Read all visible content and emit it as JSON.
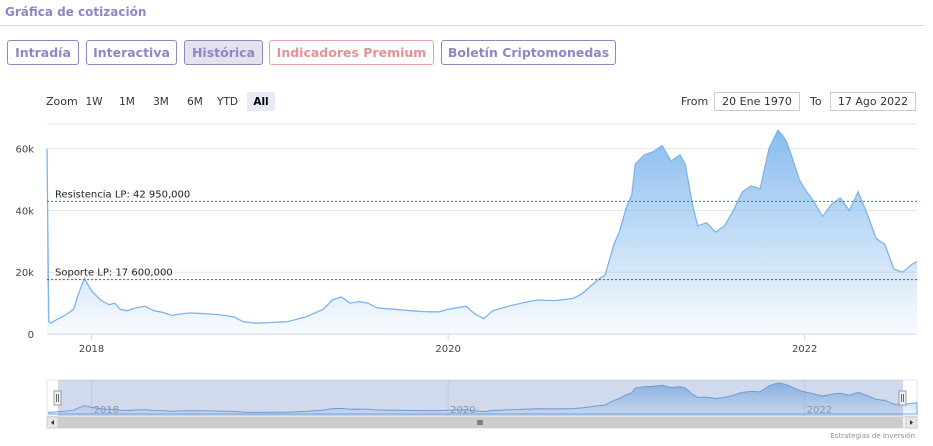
{
  "header": {
    "title": "Gráfica de cotización"
  },
  "tabs": [
    {
      "label": "Intradía",
      "active": false,
      "premium": false
    },
    {
      "label": "Interactiva",
      "active": false,
      "premium": false
    },
    {
      "label": "Histórica",
      "active": true,
      "premium": false
    },
    {
      "label": "Indicadores Premium",
      "active": false,
      "premium": true
    },
    {
      "label": "Boletín Criptomonedas",
      "active": false,
      "premium": false
    }
  ],
  "range_selector": {
    "zoom_label": "Zoom",
    "buttons": [
      "1W",
      "1M",
      "3M",
      "6M",
      "YTD",
      "All"
    ],
    "selected": "All",
    "from_label": "From",
    "from_value": "20 Ene 1970",
    "to_label": "To",
    "to_value": "17 Ago 2022"
  },
  "credits": "Estrategias de Inversión",
  "colors": {
    "series": "#7cb5ec",
    "resistance": "#2e9d2e",
    "support": "#c0392b",
    "navigator_mask": "rgba(102,133,194,0.3)"
  },
  "chart_data": {
    "type": "area",
    "x_ticks": [
      "2018",
      "2020",
      "2022"
    ],
    "y_ticks": [
      "0",
      "20k",
      "40k",
      "60k"
    ],
    "ylim": [
      0,
      68000
    ],
    "xlim": [
      2017.75,
      2022.63
    ],
    "grid": true,
    "annotations": [
      {
        "label": "Resistencia LP: 42 950,000",
        "value": 42950
      },
      {
        "label": "Soporte LP: 17 600,000",
        "value": 17600
      }
    ],
    "navigator": {
      "x_ticks": [
        "2018",
        "2020",
        "2022"
      ]
    },
    "series": [
      {
        "x": [
          2017.75,
          2017.76,
          2017.77,
          2017.8,
          2017.85,
          2017.9,
          2017.92,
          2017.96,
          2018.0,
          2018.05,
          2018.08,
          2018.1,
          2018.13,
          2018.16,
          2018.2,
          2018.25,
          2018.3,
          2018.35,
          2018.4,
          2018.45,
          2018.5,
          2018.55,
          2018.6,
          2018.65,
          2018.7,
          2018.75,
          2018.8,
          2018.85,
          2018.88,
          2018.92,
          2019.0,
          2019.1,
          2019.2,
          2019.3,
          2019.35,
          2019.4,
          2019.45,
          2019.5,
          2019.55,
          2019.6,
          2019.65,
          2019.7,
          2019.8,
          2019.85,
          2019.9,
          2019.95,
          2020.0,
          2020.1,
          2020.15,
          2020.2,
          2020.25,
          2020.35,
          2020.45,
          2020.5,
          2020.6,
          2020.7,
          2020.75,
          2020.8,
          2020.85,
          2020.88,
          2020.9,
          2020.93,
          2020.96,
          2021.0,
          2021.03,
          2021.05,
          2021.1,
          2021.15,
          2021.2,
          2021.25,
          2021.3,
          2021.33,
          2021.37,
          2021.4,
          2021.45,
          2021.5,
          2021.55,
          2021.6,
          2021.65,
          2021.7,
          2021.75,
          2021.8,
          2021.85,
          2021.88,
          2021.9,
          2021.93,
          2021.97,
          2022.0,
          2022.05,
          2022.1,
          2022.15,
          2022.2,
          2022.25,
          2022.3,
          2022.35,
          2022.4,
          2022.45,
          2022.5,
          2022.55,
          2022.6,
          2022.63
        ],
        "y": [
          60000,
          4000,
          3500,
          4500,
          6000,
          8000,
          12000,
          18000,
          14000,
          11000,
          10000,
          9500,
          10000,
          8000,
          7500,
          8500,
          9000,
          7500,
          7000,
          6000,
          6500,
          6800,
          6700,
          6500,
          6300,
          6000,
          5500,
          4000,
          3800,
          3500,
          3700,
          4000,
          5500,
          8000,
          11000,
          12000,
          10000,
          10500,
          10000,
          8500,
          8200,
          8000,
          7500,
          7300,
          7200,
          7200,
          8000,
          9000,
          6500,
          5000,
          7500,
          9200,
          10500,
          11000,
          10800,
          11500,
          13000,
          15500,
          18000,
          19000,
          23000,
          29000,
          33000,
          41000,
          45000,
          55000,
          58000,
          59000,
          61000,
          56000,
          58000,
          55000,
          42000,
          35000,
          36000,
          33000,
          35000,
          40000,
          46000,
          48000,
          47000,
          60000,
          66000,
          64000,
          62000,
          57000,
          50000,
          47000,
          43000,
          38000,
          42000,
          44000,
          40000,
          46000,
          39000,
          31000,
          29000,
          21000,
          20000,
          22500,
          23500
        ]
      }
    ]
  }
}
